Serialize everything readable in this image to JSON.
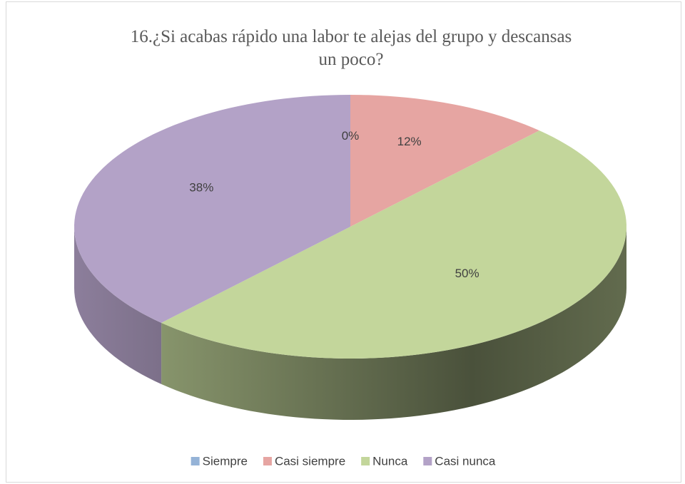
{
  "chart_data": {
    "type": "pie3d",
    "title": "16.¿Si acabas rápido una labor te alejas del grupo y descansas un poco?",
    "categories": [
      "Siempre",
      "Casi siempre",
      "Nunca",
      "Casi nunca"
    ],
    "values": [
      0,
      12,
      50,
      38
    ],
    "value_labels": [
      "0%",
      "12%",
      "50%",
      "38%"
    ],
    "colors": [
      "#95b3d7",
      "#e6a5a2",
      "#c3d69b",
      "#b3a2c7"
    ],
    "legend": "bottom"
  }
}
